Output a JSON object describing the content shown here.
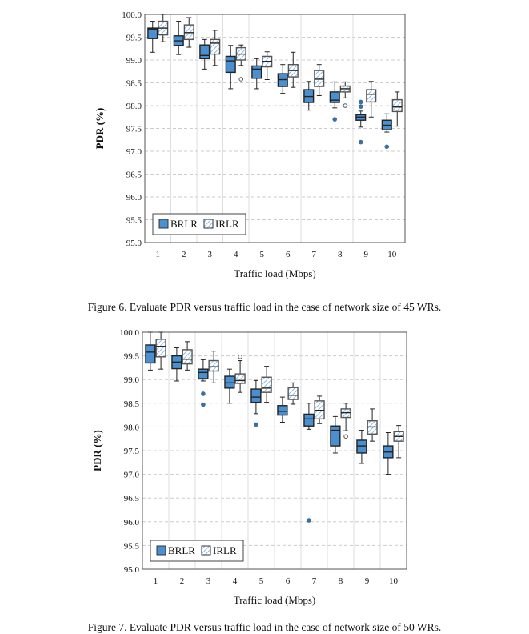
{
  "colors": {
    "brlr": "#4a90d0",
    "irlr_hatch": "#6fa8dc",
    "border": "#222"
  },
  "chart_data": [
    {
      "type": "box",
      "title": "",
      "xlabel": "Traffic load (Mbps)",
      "ylabel": "PDR (%)",
      "ylim": [
        95,
        100
      ],
      "yticks": [
        "95.0",
        "95.5",
        "96.0",
        "96.5",
        "97.0",
        "97.5",
        "98.0",
        "98.5",
        "99.0",
        "99.5",
        "100.0"
      ],
      "categories": [
        "1",
        "2",
        "3",
        "4",
        "5",
        "6",
        "7",
        "8",
        "9",
        "10"
      ],
      "legend": [
        "BRLR",
        "IRLR"
      ],
      "legend_position": "bottom-left",
      "series": [
        {
          "name": "BRLR",
          "boxes": [
            [
              99.17,
              99.47,
              99.68,
              99.7,
              99.85
            ],
            [
              99.12,
              99.32,
              99.42,
              99.53,
              99.85
            ],
            [
              98.8,
              99.03,
              99.1,
              99.33,
              99.45
            ],
            [
              98.37,
              98.73,
              98.98,
              99.08,
              99.32
            ],
            [
              98.37,
              98.6,
              98.8,
              98.87,
              99.03
            ],
            [
              98.27,
              98.42,
              98.57,
              98.7,
              98.9
            ],
            [
              97.9,
              98.07,
              98.2,
              98.35,
              98.53
            ],
            [
              97.95,
              98.07,
              98.12,
              98.3,
              98.52
            ],
            [
              97.53,
              97.68,
              97.75,
              97.8,
              97.88
            ],
            [
              97.42,
              97.47,
              97.57,
              97.68,
              97.82
            ]
          ],
          "outliers": [
            [],
            [],
            [],
            [],
            [],
            [],
            [],
            [
              97.7
            ],
            [
              98.08,
              97.98,
              97.2
            ],
            [
              97.1
            ]
          ]
        },
        {
          "name": "IRLR",
          "boxes": [
            [
              99.4,
              99.55,
              99.7,
              99.85,
              100.0
            ],
            [
              99.28,
              99.45,
              99.6,
              99.77,
              99.93
            ],
            [
              98.88,
              99.13,
              99.37,
              99.45,
              99.65
            ],
            [
              98.88,
              99.0,
              99.13,
              99.27,
              99.33
            ],
            [
              98.57,
              98.85,
              98.97,
              99.08,
              99.18
            ],
            [
              98.4,
              98.63,
              98.77,
              98.9,
              99.17
            ],
            [
              98.22,
              98.42,
              98.58,
              98.77,
              98.9
            ],
            [
              98.17,
              98.3,
              98.37,
              98.43,
              98.52
            ],
            [
              97.75,
              98.08,
              98.25,
              98.35,
              98.53
            ],
            [
              97.55,
              97.87,
              97.97,
              98.13,
              98.3
            ]
          ],
          "outliers": [
            [],
            [],
            [],
            [
              98.58
            ],
            [],
            [],
            [],
            [
              98.0
            ],
            [],
            []
          ]
        }
      ]
    },
    {
      "type": "box",
      "title": "",
      "xlabel": "Traffic load (Mbps)",
      "ylabel": "PDR (%)",
      "ylim": [
        95,
        100
      ],
      "yticks": [
        "95.0",
        "95.5",
        "96.0",
        "96.5",
        "97.0",
        "97.5",
        "98.0",
        "98.5",
        "99.0",
        "99.5",
        "100.0"
      ],
      "categories": [
        "1",
        "2",
        "3",
        "4",
        "5",
        "6",
        "7",
        "8",
        "9",
        "10"
      ],
      "legend": [
        "BRLR",
        "IRLR"
      ],
      "legend_position": "bottom-left",
      "series": [
        {
          "name": "BRLR",
          "boxes": [
            [
              99.2,
              99.35,
              99.58,
              99.73,
              100.0
            ],
            [
              98.97,
              99.23,
              99.37,
              99.5,
              99.67
            ],
            [
              98.97,
              99.02,
              99.15,
              99.22,
              99.42
            ],
            [
              98.5,
              98.82,
              98.93,
              99.07,
              99.22
            ],
            [
              98.28,
              98.52,
              98.63,
              98.8,
              98.98
            ],
            [
              98.1,
              98.25,
              98.33,
              98.45,
              98.63
            ],
            [
              97.95,
              98.02,
              98.17,
              98.27,
              98.5
            ],
            [
              97.45,
              97.6,
              97.93,
              98.02,
              98.22
            ],
            [
              97.23,
              97.45,
              97.6,
              97.72,
              97.93
            ],
            [
              97.0,
              97.35,
              97.47,
              97.6,
              97.88
            ]
          ],
          "outliers": [
            [],
            [],
            [
              98.7,
              98.47
            ],
            [],
            [
              98.05
            ],
            [],
            [
              96.03
            ],
            [],
            [],
            []
          ]
        },
        {
          "name": "IRLR",
          "boxes": [
            [
              99.22,
              99.48,
              99.7,
              99.85,
              100.0
            ],
            [
              99.2,
              99.33,
              99.43,
              99.63,
              99.8
            ],
            [
              98.93,
              99.18,
              99.27,
              99.4,
              99.6
            ],
            [
              98.73,
              98.92,
              98.98,
              99.12,
              99.4
            ],
            [
              98.52,
              98.73,
              98.82,
              99.05,
              99.28
            ],
            [
              98.48,
              98.58,
              98.67,
              98.83,
              98.93
            ],
            [
              98.07,
              98.17,
              98.35,
              98.55,
              98.65
            ],
            [
              97.92,
              98.2,
              98.3,
              98.38,
              98.5
            ],
            [
              97.7,
              97.85,
              98.0,
              98.13,
              98.38
            ],
            [
              97.35,
              97.7,
              97.8,
              97.9,
              98.03
            ]
          ],
          "outliers": [
            [],
            [],
            [],
            [
              99.48
            ],
            [],
            [],
            [],
            [
              97.8
            ],
            [],
            []
          ]
        }
      ]
    }
  ],
  "captions": [
    "Figure 6. Evaluate PDR versus traffic load in the case of network size of 45 WRs.",
    "Figure 7. Evaluate PDR versus traffic load in the case of network size of 50 WRs."
  ]
}
